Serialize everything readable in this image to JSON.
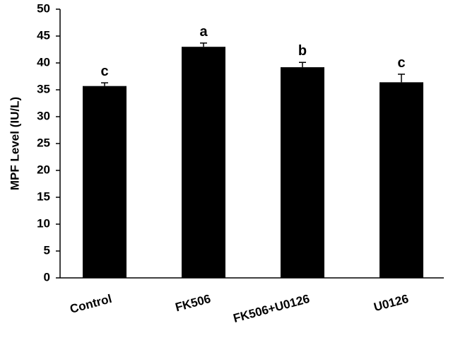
{
  "chart_data": {
    "type": "bar",
    "y_label": "MPF Level (IU/L)",
    "categories": [
      "Control",
      "FK506",
      "FK506+U0126",
      "U0126"
    ],
    "values": [
      35.7,
      43.0,
      39.2,
      36.4
    ],
    "errors": [
      0.6,
      0.7,
      0.9,
      1.5
    ],
    "significance_letters": [
      "c",
      "a",
      "b",
      "c"
    ],
    "color": "#000000",
    "ylim": [
      0,
      50
    ],
    "yticks": [
      0,
      5,
      10,
      15,
      20,
      25,
      30,
      35,
      40,
      45,
      50
    ],
    "grid": false
  }
}
